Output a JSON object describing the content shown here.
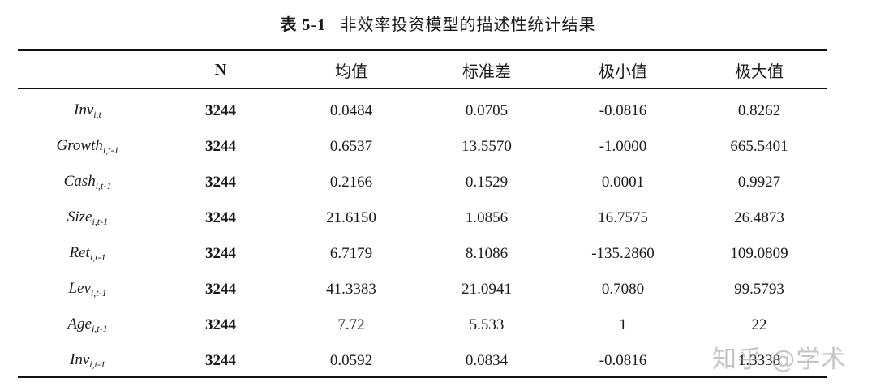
{
  "caption": {
    "number": "表 5-1",
    "title": "非效率投资模型的描述性统计结果"
  },
  "columns": [
    "",
    "N",
    "均值",
    "标准差",
    "极小值",
    "极大值"
  ],
  "rows": [
    {
      "var": "Inv",
      "sub": "i,t",
      "n": "3244",
      "mean": "0.0484",
      "sd": "0.0705",
      "min": "-0.0816",
      "max": "0.8262"
    },
    {
      "var": "Growth",
      "sub": "i,t-1",
      "n": "3244",
      "mean": "0.6537",
      "sd": "13.5570",
      "min": "-1.0000",
      "max": "665.5401"
    },
    {
      "var": "Cash",
      "sub": "i,t-1",
      "n": "3244",
      "mean": "0.2166",
      "sd": "0.1529",
      "min": "0.0001",
      "max": "0.9927"
    },
    {
      "var": "Size",
      "sub": "i,t-1",
      "n": "3244",
      "mean": "21.6150",
      "sd": "1.0856",
      "min": "16.7575",
      "max": "26.4873"
    },
    {
      "var": "Ret",
      "sub": "i,t-1",
      "n": "3244",
      "mean": "6.7179",
      "sd": "8.1086",
      "min": "-135.2860",
      "max": "109.0809"
    },
    {
      "var": "Lev",
      "sub": "i,t-1",
      "n": "3244",
      "mean": "41.3383",
      "sd": "21.0941",
      "min": "0.7080",
      "max": "99.5793"
    },
    {
      "var": "Age",
      "sub": "i,t-1",
      "n": "3244",
      "mean": "7.72",
      "sd": "5.533",
      "min": "1",
      "max": "22"
    },
    {
      "var": "Inv",
      "sub": "i,t-1",
      "n": "3244",
      "mean": "0.0592",
      "sd": "0.0834",
      "min": "-0.0816",
      "max": "1.3338"
    }
  ],
  "watermark": "知乎 @学术"
}
